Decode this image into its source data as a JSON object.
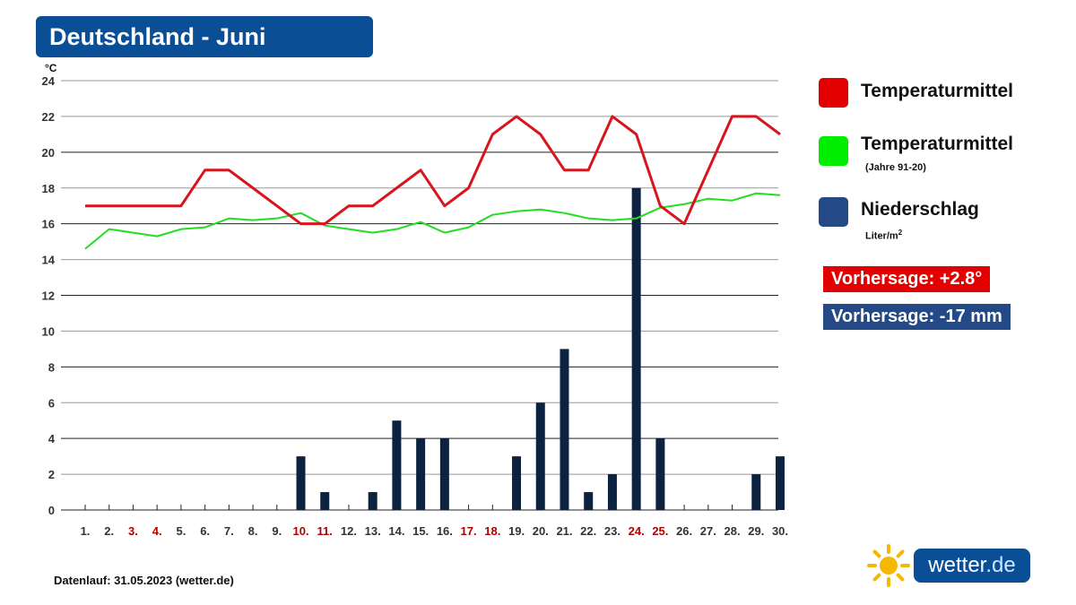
{
  "title": "Deutschland - Juni",
  "unit_label": "°C",
  "legend": [
    {
      "label": "Temperaturmittel",
      "sub": "",
      "color": "#e20000"
    },
    {
      "label": "Temperaturmittel",
      "sub": "(Jahre 91-20)",
      "color": "#00ee00"
    },
    {
      "label": "Niederschlag",
      "sub": "Liter/m",
      "sub_sup": "2",
      "color": "#234a86"
    }
  ],
  "badges": [
    {
      "text": "Vorhersage: +2.8°",
      "color": "#e20000"
    },
    {
      "text": "Vorhersage: -17 mm",
      "color": "#234a86"
    }
  ],
  "footer": "Datenlauf: 31.05.2023 (wetter.de)",
  "logo": {
    "name": "wetter",
    "tld": ".de"
  },
  "chart_data": {
    "type": "bar",
    "title": "Deutschland - Juni",
    "ylabel": "°C",
    "ylim": [
      0,
      24
    ],
    "yticks": [
      0,
      2,
      4,
      6,
      8,
      10,
      12,
      14,
      16,
      18,
      20,
      22,
      24
    ],
    "grid": true,
    "legend_position": "right",
    "categories": [
      "1.",
      "2.",
      "3.",
      "4.",
      "5.",
      "6.",
      "7.",
      "8.",
      "9.",
      "10.",
      "11.",
      "12.",
      "13.",
      "14.",
      "15.",
      "16.",
      "17.",
      "18.",
      "19.",
      "20.",
      "21.",
      "22.",
      "23.",
      "24.",
      "25.",
      "26.",
      "27.",
      "28.",
      "29.",
      "30."
    ],
    "weekend_days": [
      "3.",
      "4.",
      "10.",
      "11.",
      "17.",
      "18.",
      "24.",
      "25."
    ],
    "weekend_color": "#b00000",
    "series": [
      {
        "name": "Temperaturmittel",
        "type": "line",
        "color": "#d8141c",
        "values": [
          17,
          17,
          17,
          17,
          17,
          19,
          19,
          18,
          17,
          16,
          16,
          17,
          17,
          18,
          19,
          17,
          18,
          21,
          22,
          21,
          19,
          19,
          22,
          21,
          17,
          16,
          19,
          22,
          22,
          21
        ]
      },
      {
        "name": "Temperaturmittel (Jahre 91-20)",
        "type": "line",
        "color": "#22dd22",
        "values": [
          14.6,
          15.7,
          15.5,
          15.3,
          15.7,
          15.8,
          16.3,
          16.2,
          16.3,
          16.6,
          15.9,
          15.7,
          15.5,
          15.7,
          16.1,
          15.5,
          15.8,
          16.5,
          16.7,
          16.8,
          16.6,
          16.3,
          16.2,
          16.3,
          16.9,
          17.1,
          17.4,
          17.3,
          17.7,
          17.6
        ]
      },
      {
        "name": "Niederschlag",
        "type": "bar",
        "color": "#0d2140",
        "values": [
          0,
          0,
          0,
          0,
          0,
          0,
          0,
          0,
          0,
          3,
          1,
          0,
          1,
          5,
          4,
          4,
          0,
          0,
          3,
          6,
          9,
          1,
          2,
          18,
          4,
          0,
          0,
          0,
          2,
          3
        ]
      }
    ]
  }
}
